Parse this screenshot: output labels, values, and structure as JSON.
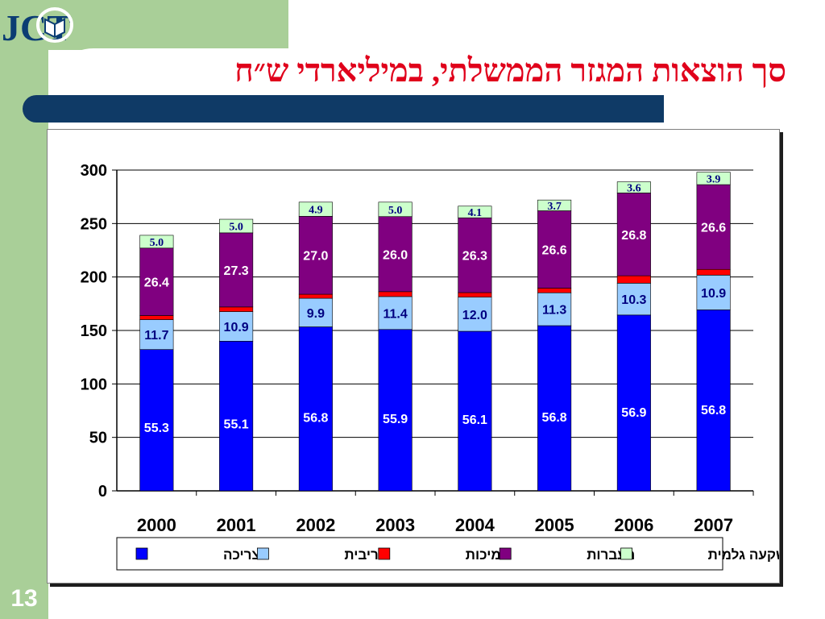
{
  "slide": {
    "title": "סך הוצאות המגזר הממשלתי, במיליארדי ש״ח",
    "page_number": "13",
    "logo_text": "JCT"
  },
  "colors": {
    "background": "#ffffff",
    "side_green": "#a9cf98",
    "title_red": "#e0001b",
    "title_bar": "#0f3a66"
  },
  "chart_data": {
    "type": "bar",
    "stacked": true,
    "categories": [
      "2000",
      "2001",
      "2002",
      "2003",
      "2004",
      "2005",
      "2006",
      "2007"
    ],
    "totals": [
      239,
      254,
      270,
      270,
      266,
      272,
      289,
      298
    ],
    "ylim": [
      0,
      300
    ],
    "yticks": [
      0,
      50,
      100,
      150,
      200,
      250,
      300
    ],
    "grid": true,
    "legend_position": "bottom",
    "series": [
      {
        "name": "צריכה",
        "color": "#0000ff",
        "share_labels": [
          "55.3",
          "55.1",
          "56.8",
          "55.9",
          "56.1",
          "56.8",
          "56.9",
          "56.8"
        ],
        "label_color": "#ffffff"
      },
      {
        "name": "ריבית",
        "color": "#99ccff",
        "share_labels": [
          "11.7",
          "10.9",
          "9.9",
          "11.4",
          "12.0",
          "11.3",
          "10.3",
          "10.9"
        ],
        "label_color": "#000080"
      },
      {
        "name": "תמיכות",
        "color": "#ff0000",
        "share_labels": [
          "1.6",
          "1.7",
          "1.4",
          "1.7",
          "1.6",
          "1.6",
          "2.4",
          "1.8"
        ],
        "label_color": "#ff66cc"
      },
      {
        "name": "העברות",
        "color": "#800080",
        "share_labels": [
          "26.4",
          "27.3",
          "27.0",
          "26.0",
          "26.3",
          "26.6",
          "26.8",
          "26.6"
        ],
        "label_color": "#ffffff"
      },
      {
        "name": "השקעה גלמית",
        "color": "#ccffcc",
        "share_labels": [
          "5.0",
          "5.0",
          "4.9",
          "5.0",
          "4.1",
          "3.7",
          "3.6",
          "3.9"
        ],
        "label_color": "#000080"
      }
    ]
  }
}
